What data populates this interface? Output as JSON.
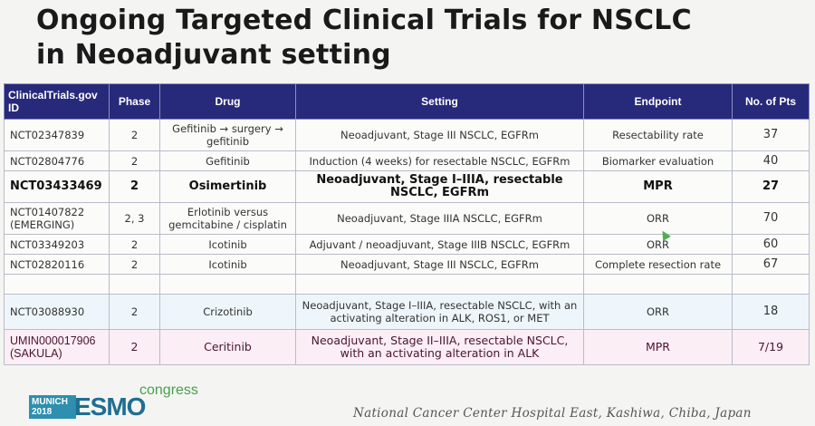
{
  "slide": {
    "title_line1": "Ongoing Targeted Clinical Trials for NSCLC",
    "title_line2": "in Neoadjuvant setting"
  },
  "table": {
    "headers": [
      "ClinicalTrials.gov ID",
      "Phase",
      "Drug",
      "Setting",
      "Endpoint",
      "No. of Pts"
    ],
    "rows": [
      {
        "id": "NCT02347839",
        "phase": "2",
        "drug": "Gefitinib → surgery → gefitinib",
        "setting": "Neoadjuvant, Stage III NSCLC, EGFRm",
        "endpoint": "Resectability rate",
        "pts": "37"
      },
      {
        "id": "NCT02804776",
        "phase": "2",
        "drug": "Gefitinib",
        "setting": "Induction (4 weeks) for resectable NSCLC, EGFRm",
        "endpoint": "Biomarker evaluation",
        "pts": "40"
      },
      {
        "id": "NCT03433469",
        "phase": "2",
        "drug": "Osimertinib",
        "setting": "Neoadjuvant, Stage I–IIIA, resectable NSCLC, EGFRm",
        "endpoint": "MPR",
        "pts": "27"
      },
      {
        "id": "NCT01407822 (EMERGING)",
        "phase": "2, 3",
        "drug": "Erlotinib versus gemcitabine / cisplatin",
        "setting": "Neoadjuvant, Stage IIIA NSCLC, EGFRm",
        "endpoint": "ORR",
        "pts": "70"
      },
      {
        "id": "NCT03349203",
        "phase": "2",
        "drug": "Icotinib",
        "setting": "Adjuvant / neoadjuvant, Stage IIIB NSCLC, EGFRm",
        "endpoint": "ORR",
        "pts": "60"
      },
      {
        "id": "NCT02820116",
        "phase": "2",
        "drug": "Icotinib",
        "setting": "Neoadjuvant, Stage III NSCLC, EGFRm",
        "endpoint": "Complete resection rate",
        "pts": "67"
      },
      {
        "id": "NCT03088930",
        "phase": "2",
        "drug": "Crizotinib",
        "setting": "Neoadjuvant, Stage I–IIIA, resectable NSCLC, with an activating alteration in ALK, ROS1, or MET",
        "endpoint": "ORR",
        "pts": "18"
      },
      {
        "id": "UMIN000017906 (SAKULA)",
        "phase": "2",
        "drug": "Ceritinib",
        "setting": "Neoadjuvant, Stage II–IIIA, resectable NSCLC, with an activating alteration in ALK",
        "endpoint": "MPR",
        "pts": "7/19"
      }
    ]
  },
  "logo": {
    "city_line1": "MUNICH",
    "city_line2": "2018",
    "brand": "ESMO",
    "word": "congress"
  },
  "footer": {
    "institution": "National Cancer Center Hospital East, Kashiwa, Chiba, Japan"
  },
  "colors": {
    "header_bg": "#27297a",
    "row_blue": "#eef6fb",
    "row_pink": "#fbeef4",
    "cursor": "#47b34a"
  },
  "icons": {
    "cursor": "pointer-cursor-icon"
  }
}
